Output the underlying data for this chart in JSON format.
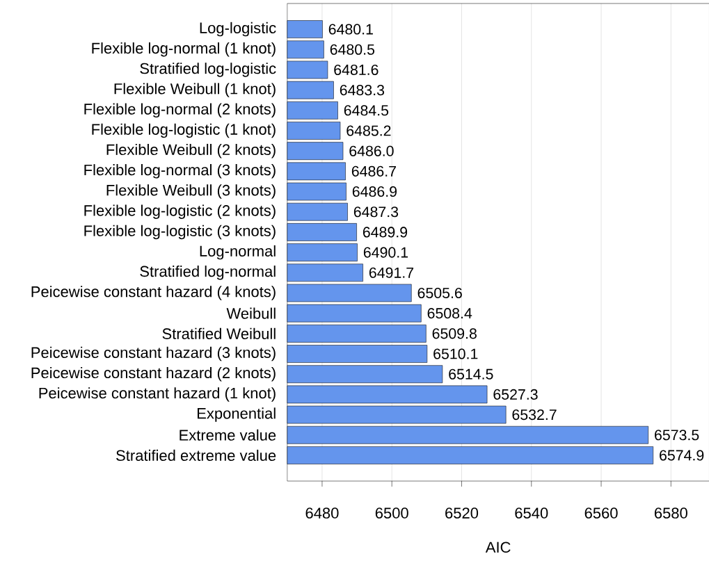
{
  "chart_data": {
    "type": "bar",
    "orientation": "horizontal",
    "xlabel": "AIC",
    "categories": [
      "Log-logistic",
      "Flexible log-normal (1 knot)",
      "Stratified log-logistic",
      "Flexible Weibull (1 knot)",
      "Flexible log-normal (2 knots)",
      "Flexible log-logistic (1 knot)",
      "Flexible Weibull (2 knots)",
      "Flexible log-normal (3 knots)",
      "Flexible Weibull (3 knots)",
      "Flexible log-logistic (2 knots)",
      "Flexible log-logistic (3 knots)",
      "Log-normal",
      "Stratified log-normal",
      "Peicewise constant hazard (4 knots)",
      "Weibull",
      "Stratified Weibull",
      "Peicewise constant hazard (3 knots)",
      "Peicewise constant hazard (2 knots)",
      "Peicewise constant hazard (1 knot)",
      "Exponential",
      "Extreme value",
      "Stratified extreme value"
    ],
    "values": [
      6480.1,
      6480.5,
      6481.6,
      6483.3,
      6484.5,
      6485.2,
      6486.0,
      6486.7,
      6486.9,
      6487.3,
      6489.9,
      6490.1,
      6491.7,
      6505.6,
      6508.4,
      6509.8,
      6510.1,
      6514.5,
      6527.3,
      6532.7,
      6573.5,
      6574.9
    ],
    "value_labels": [
      "6480.1",
      "6480.5",
      "6481.6",
      "6483.3",
      "6484.5",
      "6485.2",
      "6486.0",
      "6486.7",
      "6486.9",
      "6487.3",
      "6489.9",
      "6490.1",
      "6491.7",
      "6505.6",
      "6508.4",
      "6509.8",
      "6510.1",
      "6514.5",
      "6527.3",
      "6532.7",
      "6573.5",
      "6574.9"
    ],
    "color": "#6495ed",
    "xlim": [
      6470,
      6591
    ],
    "xticks": [
      6480,
      6500,
      6520,
      6540,
      6560,
      6580
    ],
    "grid": "x"
  }
}
